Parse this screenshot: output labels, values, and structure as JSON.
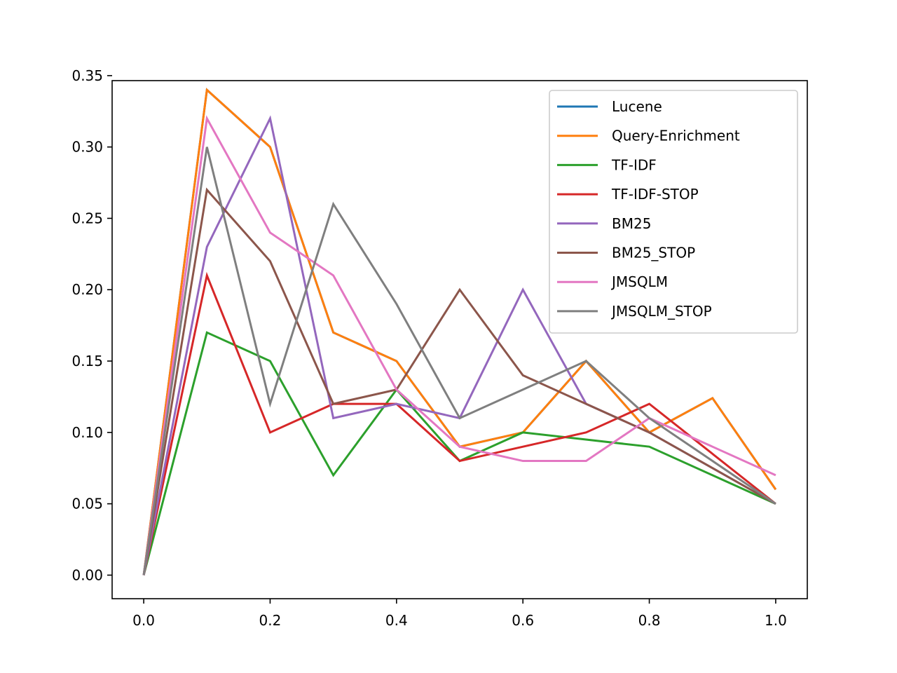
{
  "chart_data": {
    "type": "line",
    "title": "",
    "xlabel": "",
    "ylabel": "",
    "xlim": [
      -0.05,
      1.05
    ],
    "ylim": [
      -0.0165,
      0.3465
    ],
    "x_ticks": [
      "0.0",
      "0.2",
      "0.4",
      "0.6",
      "0.8",
      "1.0"
    ],
    "y_ticks": [
      "0.00",
      "0.05",
      "0.10",
      "0.15",
      "0.20",
      "0.25",
      "0.30",
      "0.35"
    ],
    "grid": false,
    "legend_position": "top-right",
    "x": [
      0.0,
      0.1,
      0.2,
      0.3,
      0.4,
      0.5,
      0.6,
      0.7,
      0.8,
      0.9,
      1.0
    ],
    "series": [
      {
        "name": "Lucene",
        "color": "#1f77b4",
        "values": [
          0.0,
          0.34,
          0.3,
          0.17,
          0.15,
          0.09,
          0.1,
          0.15,
          0.1,
          0.124,
          0.06
        ]
      },
      {
        "name": "Query-Enrichment",
        "color": "#ff7f0e",
        "values": [
          0.0,
          0.34,
          0.3,
          0.17,
          0.15,
          0.09,
          0.1,
          0.15,
          0.1,
          0.124,
          0.06
        ]
      },
      {
        "name": "TF-IDF",
        "color": "#2ca02c",
        "values": [
          0.0,
          0.17,
          0.15,
          0.07,
          0.13,
          0.08,
          0.1,
          0.095,
          0.09,
          0.07,
          0.05
        ]
      },
      {
        "name": "TF-IDF-STOP",
        "color": "#d62728",
        "values": [
          0.0,
          0.21,
          0.1,
          0.12,
          0.12,
          0.08,
          0.09,
          0.1,
          0.12,
          0.085,
          0.05
        ]
      },
      {
        "name": "BM25",
        "color": "#9467bd",
        "values": [
          0.0,
          0.23,
          0.32,
          0.11,
          0.12,
          0.11,
          0.2,
          0.12,
          0.1,
          0.075,
          0.05
        ]
      },
      {
        "name": "BM25_STOP",
        "color": "#8c564b",
        "values": [
          0.0,
          0.27,
          0.22,
          0.12,
          0.13,
          0.2,
          0.14,
          0.12,
          0.1,
          0.075,
          0.05
        ]
      },
      {
        "name": "JMSQLM",
        "color": "#e377c2",
        "values": [
          0.0,
          0.32,
          0.24,
          0.21,
          0.13,
          0.09,
          0.08,
          0.08,
          0.11,
          0.09,
          0.07
        ]
      },
      {
        "name": "JMSQLM_STOP",
        "color": "#7f7f7f",
        "values": [
          0.0,
          0.3,
          0.12,
          0.26,
          0.19,
          0.11,
          0.13,
          0.15,
          0.11,
          0.08,
          0.05
        ]
      }
    ]
  }
}
